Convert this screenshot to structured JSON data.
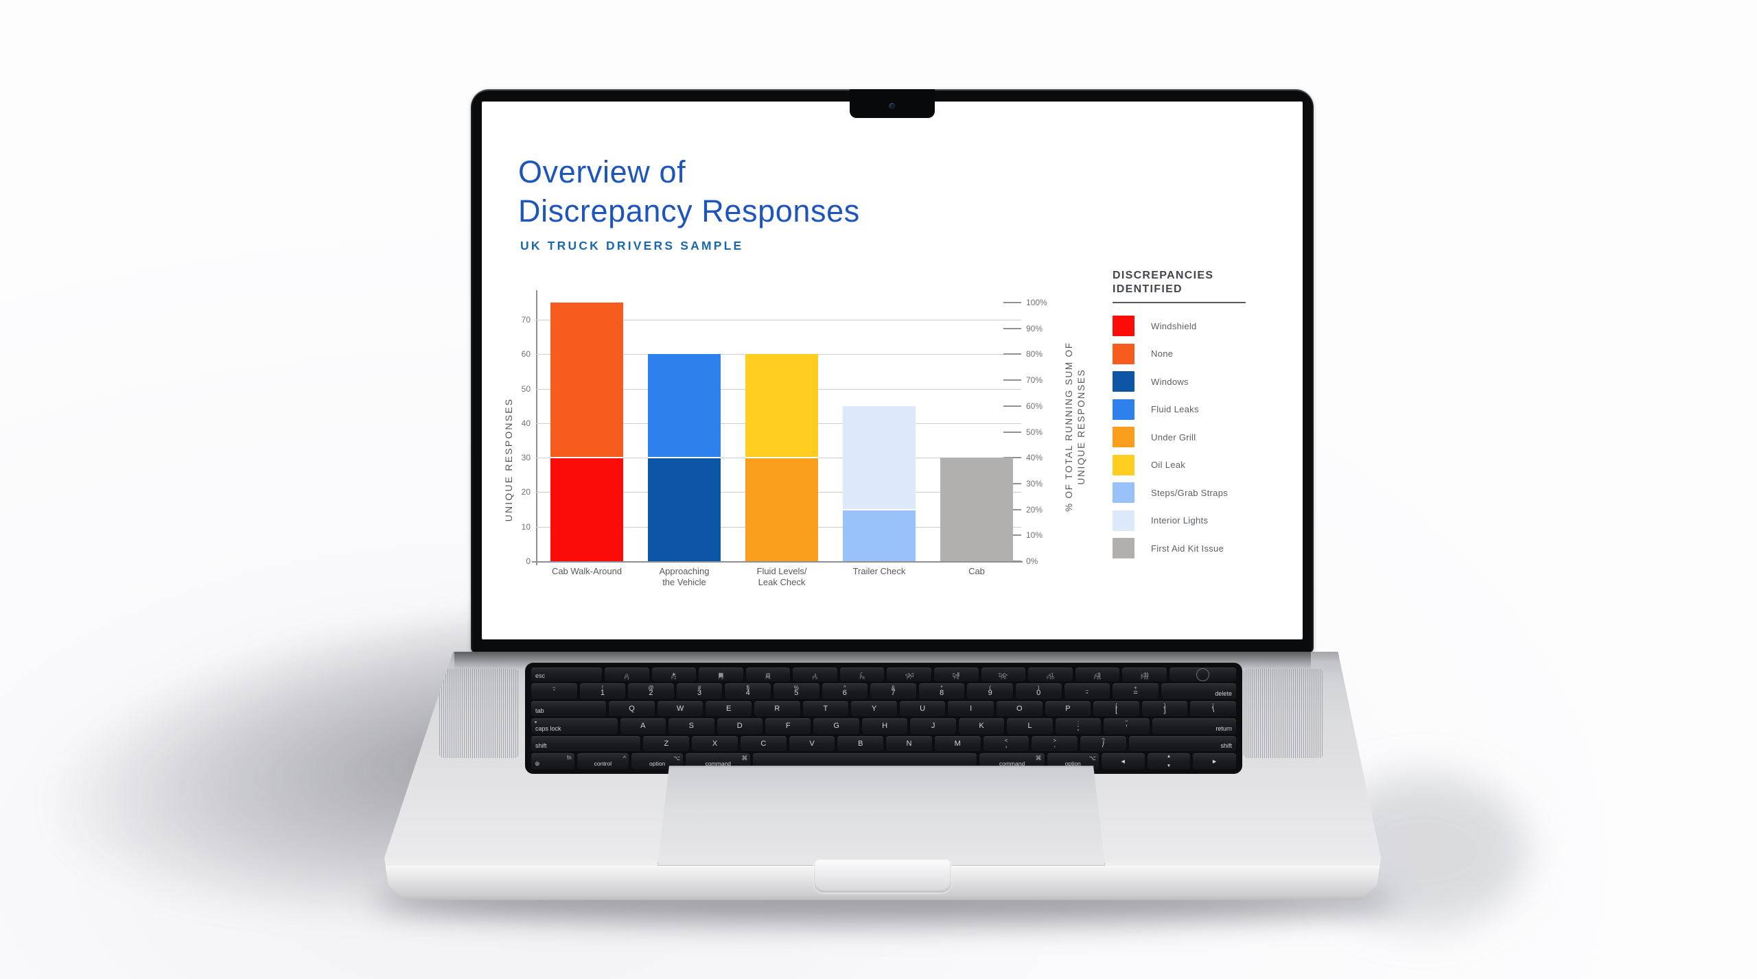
{
  "slide": {
    "title": "Overview of\nDiscrepancy Responses",
    "subtitle": "UK TRUCK DRIVERS SAMPLE",
    "colors": {
      "title": "#1d55bc",
      "subtitle": "#1a68ad"
    }
  },
  "chart_data": {
    "type": "bar",
    "stacked": true,
    "title": "Overview of Discrepancy Responses",
    "subtitle": "UK TRUCK DRIVERS SAMPLE",
    "categories": [
      "Cab Walk-Around",
      "Approaching\nthe Vehicle",
      "Fluid Levels/\nLeak Check",
      "Trailer Check",
      "Cab"
    ],
    "series": [
      {
        "name": "Windshield",
        "color": "#fb0c09",
        "values": [
          30,
          0,
          0,
          0,
          0
        ]
      },
      {
        "name": "None",
        "color": "#f75c1f",
        "values": [
          45,
          0,
          0,
          0,
          0
        ]
      },
      {
        "name": "Windows",
        "color": "#0c56a5",
        "values": [
          0,
          30,
          0,
          0,
          0
        ]
      },
      {
        "name": "Fluid Leaks",
        "color": "#2e80ed",
        "values": [
          0,
          30,
          0,
          0,
          0
        ]
      },
      {
        "name": "Under Grill",
        "color": "#f99e1c",
        "values": [
          0,
          0,
          30,
          0,
          0
        ]
      },
      {
        "name": "Oil Leak",
        "color": "#ffcd1f",
        "values": [
          0,
          0,
          30,
          0,
          0
        ]
      },
      {
        "name": "Steps/Grab Straps",
        "color": "#9ac2fa",
        "values": [
          0,
          0,
          0,
          15,
          0
        ]
      },
      {
        "name": "Interior Lights",
        "color": "#dce9fb",
        "values": [
          0,
          0,
          0,
          30,
          0
        ]
      },
      {
        "name": "First Aid Kit Issue",
        "color": "#b1b0af",
        "values": [
          0,
          0,
          0,
          0,
          30
        ]
      }
    ],
    "y_left": {
      "label": "UNIQUE RESPONSES",
      "ticks": [
        0,
        10,
        20,
        30,
        40,
        50,
        60,
        70
      ],
      "max": 75
    },
    "y_right": {
      "label": "% OF TOTAL RUNNING SUM OF\nUNIQUE RESPONSES",
      "ticks": [
        "0%",
        "10%",
        "20%",
        "30%",
        "40%",
        "50%",
        "60%",
        "70%",
        "80%",
        "90%",
        "100%"
      ],
      "max": 100
    },
    "grid": true,
    "legend_position": "right"
  },
  "legend": {
    "title": "DISCREPANCIES\nIDENTIFIED"
  },
  "laptop": {
    "keyboard": {
      "rows": [
        {
          "name": "function",
          "keys": [
            {
              "m": "esc",
              "w": 1.5,
              "c": "word-l"
            },
            {
              "m": "☼",
              "s": "F1"
            },
            {
              "m": "☀",
              "s": "F2"
            },
            {
              "m": "▦",
              "s": "F3"
            },
            {
              "m": "◎",
              "s": "F4"
            },
            {
              "m": "♪",
              "s": "F5"
            },
            {
              "m": "☾",
              "s": "F6"
            },
            {
              "m": "◁◁",
              "s": "F7"
            },
            {
              "m": "▷‖",
              "s": "F8"
            },
            {
              "m": "▷▷",
              "s": "F9"
            },
            {
              "m": "◁",
              "s": "F10"
            },
            {
              "m": "◁)",
              "s": "F11"
            },
            {
              "m": "◁))",
              "s": "F12"
            },
            {
              "m": "",
              "w": 1.5,
              "c": "tid"
            }
          ]
        },
        {
          "name": "number",
          "keys": [
            {
              "t": "~",
              "m": "`"
            },
            {
              "t": "!",
              "m": "1"
            },
            {
              "t": "@",
              "m": "2"
            },
            {
              "t": "#",
              "m": "3"
            },
            {
              "t": "$",
              "m": "4"
            },
            {
              "t": "%",
              "m": "5"
            },
            {
              "t": "^",
              "m": "6"
            },
            {
              "t": "&",
              "m": "7"
            },
            {
              "t": "*",
              "m": "8"
            },
            {
              "t": "(",
              "m": "9"
            },
            {
              "t": ")",
              "m": "0"
            },
            {
              "t": "_",
              "m": "-"
            },
            {
              "t": "+",
              "m": "="
            },
            {
              "m": "delete",
              "w": 1.55,
              "c": "word-r"
            }
          ]
        },
        {
          "name": "qwerty",
          "keys": [
            {
              "m": "tab",
              "w": 1.55,
              "c": "word-l"
            },
            {
              "m": "Q"
            },
            {
              "m": "W"
            },
            {
              "m": "E"
            },
            {
              "m": "R"
            },
            {
              "m": "T"
            },
            {
              "m": "Y"
            },
            {
              "m": "U"
            },
            {
              "m": "I"
            },
            {
              "m": "O"
            },
            {
              "m": "P"
            },
            {
              "t": "{",
              "m": "["
            },
            {
              "t": "}",
              "m": "]"
            },
            {
              "t": "|",
              "m": "\\"
            }
          ]
        },
        {
          "name": "home",
          "keys": [
            {
              "m": "caps lock",
              "w": 1.8,
              "c": "word-l",
              "dot": true
            },
            {
              "m": "A"
            },
            {
              "m": "S"
            },
            {
              "m": "D"
            },
            {
              "m": "F"
            },
            {
              "m": "G"
            },
            {
              "m": "H"
            },
            {
              "m": "J"
            },
            {
              "m": "K"
            },
            {
              "m": "L"
            },
            {
              "t": ":",
              "m": ";"
            },
            {
              "t": "\"",
              "m": "'"
            },
            {
              "m": "return",
              "w": 1.75,
              "c": "word-r"
            }
          ]
        },
        {
          "name": "bottom-letters",
          "keys": [
            {
              "m": "shift",
              "w": 2.3,
              "c": "word-l"
            },
            {
              "m": "Z"
            },
            {
              "m": "X"
            },
            {
              "m": "C"
            },
            {
              "m": "V"
            },
            {
              "m": "B"
            },
            {
              "m": "N"
            },
            {
              "m": "M"
            },
            {
              "t": "<",
              "m": ","
            },
            {
              "t": ">",
              "m": "."
            },
            {
              "t": "?",
              "m": "/"
            },
            {
              "m": "shift",
              "w": 2.25,
              "c": "word-r"
            }
          ]
        },
        {
          "name": "modifiers",
          "keys": [
            {
              "m": "fn",
              "w": 1,
              "c": "fn"
            },
            {
              "t": "^",
              "m": "control",
              "w": 1.2,
              "c": "mod"
            },
            {
              "t": "⌥",
              "m": "option",
              "w": 1.2,
              "c": "mod"
            },
            {
              "t": "⌘",
              "m": "command",
              "w": 1.5,
              "c": "mod"
            },
            {
              "m": "",
              "w": 5.2,
              "c": "space"
            },
            {
              "t": "⌘",
              "m": "command",
              "w": 1.5,
              "c": "mod"
            },
            {
              "t": "⌥",
              "m": "option",
              "w": 1.2,
              "c": "mod"
            },
            {
              "m": "◀",
              "c": "arrow"
            },
            {
              "m": "▲|▼",
              "c": "updown"
            },
            {
              "m": "▶",
              "c": "arrow"
            }
          ]
        }
      ]
    }
  }
}
